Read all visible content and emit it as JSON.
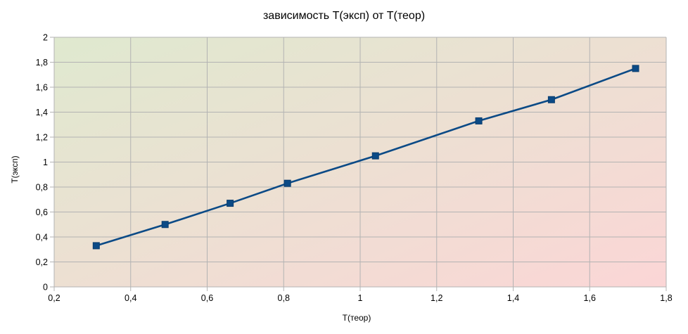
{
  "chart_data": {
    "type": "line",
    "title": "зависимость T(эксп) от T(теор)",
    "xlabel": "T(теор)",
    "ylabel": "T(эксп)",
    "xlim": [
      0.2,
      1.8
    ],
    "ylim": [
      0,
      2
    ],
    "x_ticks": [
      "0,2",
      "0,4",
      "0,6",
      "0,8",
      "1",
      "1,2",
      "1,4",
      "1,6",
      "1,8"
    ],
    "y_ticks": [
      "0",
      "0,2",
      "0,4",
      "0,6",
      "0,8",
      "1",
      "1,2",
      "1,4",
      "1,6",
      "1,8",
      "2"
    ],
    "grid": true,
    "legend": "none",
    "series": [
      {
        "color": "#0b4a86",
        "marker": "square",
        "points": [
          {
            "x": 0.31,
            "y": 0.33
          },
          {
            "x": 0.49,
            "y": 0.5
          },
          {
            "x": 0.66,
            "y": 0.67
          },
          {
            "x": 0.81,
            "y": 0.83
          },
          {
            "x": 1.04,
            "y": 1.05
          },
          {
            "x": 1.31,
            "y": 1.33
          },
          {
            "x": 1.5,
            "y": 1.5
          },
          {
            "x": 1.72,
            "y": 1.75
          }
        ]
      }
    ],
    "plot_background": {
      "from": "#dfe9cf",
      "to": "#fbd6d6"
    }
  }
}
